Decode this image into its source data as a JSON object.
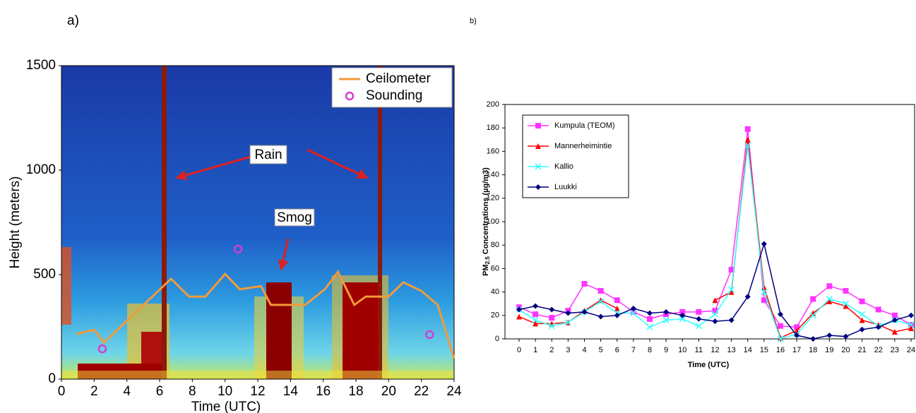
{
  "chart_data": [
    {
      "type": "line",
      "label": "a)",
      "x_label": "Time (UTC)",
      "y_label": "Height (meters)",
      "annotations": [
        "Rain",
        "Smog"
      ],
      "xlim": [
        0,
        24
      ],
      "ylim": [
        0,
        1500
      ],
      "xticks": [
        0,
        2,
        4,
        6,
        8,
        10,
        12,
        14,
        16,
        18,
        20,
        22,
        24
      ],
      "yticks": [
        0,
        500,
        1000,
        1500
      ],
      "grid": false,
      "legend": "upper right",
      "series": [
        {
          "name": "Ceilometer",
          "color": "#f29a3a",
          "style": "line",
          "x": [
            0.9,
            2.0,
            2.6,
            6.7,
            7.8,
            8.8,
            10.0,
            10.9,
            12.2,
            12.8,
            14.9,
            16.1,
            16.9,
            17.9,
            18.6,
            20.0,
            20.9,
            22.0,
            23.0,
            24.0
          ],
          "values": [
            215,
            236,
            175,
            480,
            395,
            395,
            503,
            430,
            445,
            355,
            355,
            430,
            513,
            355,
            395,
            395,
            463,
            422,
            355,
            98
          ]
        },
        {
          "name": "Sounding",
          "color": "#d23fd2",
          "style": "points",
          "x": [
            2.5,
            10.8,
            22.5
          ],
          "values": [
            145,
            622,
            213
          ]
        }
      ]
    },
    {
      "type": "line",
      "label": "b)",
      "x_label": "Time (UTC)",
      "y_label": {
        "text": "PM",
        "subscript": "2.5",
        "rest": "Concentrations (µg/m3)"
      },
      "categories": [
        "0",
        "1",
        "2",
        "3",
        "4",
        "5",
        "6",
        "7",
        "8",
        "9",
        "10",
        "11",
        "12",
        "13",
        "14",
        "15",
        "16",
        "17",
        "18",
        "19",
        "20",
        "21",
        "22",
        "23",
        "24"
      ],
      "ylim": [
        0,
        200
      ],
      "yticks": [
        0,
        20,
        40,
        60,
        80,
        100,
        120,
        140,
        160,
        180,
        200
      ],
      "grid": false,
      "legend": "upper left",
      "series": [
        {
          "name": "Kumpula (TEOM)",
          "color": "#ff33ff",
          "marker": "square",
          "values": [
            27,
            21,
            18,
            24,
            47,
            41,
            33,
            23,
            17,
            21,
            23,
            23,
            24,
            59,
            179,
            33,
            11,
            10,
            34,
            45,
            41,
            32,
            25,
            20,
            12
          ]
        },
        {
          "name": "Mannerheimintie",
          "color": "#ff0000",
          "marker": "triangle",
          "values": [
            19,
            13,
            13,
            14,
            24,
            33,
            26,
            null,
            null,
            null,
            null,
            null,
            33,
            40,
            170,
            44,
            1,
            7,
            22,
            32,
            28,
            16,
            12,
            6,
            9
          ]
        },
        {
          "name": "Kallio",
          "color": "#33ffff",
          "marker": "cross",
          "values": [
            25,
            16,
            11,
            14,
            23,
            32,
            22,
            22,
            10,
            16,
            17,
            11,
            21,
            42,
            165,
            40,
            0,
            4,
            20,
            34,
            30,
            21,
            11,
            16,
            12
          ]
        },
        {
          "name": "Luukki",
          "color": "#000080",
          "marker": "diamond",
          "values": [
            25,
            28,
            25,
            22,
            23,
            19,
            20,
            26,
            22,
            23,
            20,
            17,
            15,
            16,
            36,
            81,
            21,
            3,
            0,
            3,
            2,
            8,
            10,
            16,
            20
          ]
        }
      ]
    }
  ]
}
